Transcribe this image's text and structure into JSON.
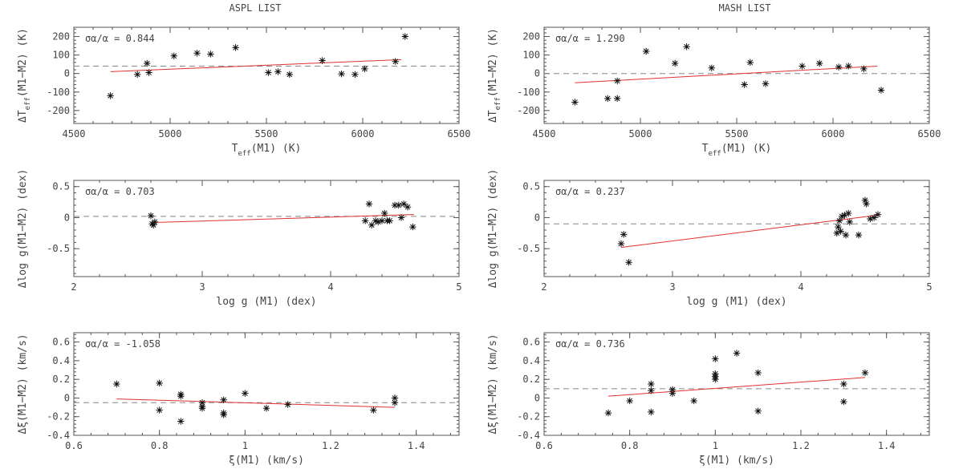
{
  "columns": [
    "ASPL LIST",
    "MASH LIST"
  ],
  "chart_data": [
    {
      "type": "scatter",
      "column": "ASPL LIST",
      "row": 0,
      "xlabel": "T_eff(M1) (K)",
      "ylabel": "ΔT_eff(M1−M2) (K)",
      "annotation": "σα/α = 0.844",
      "xlim": [
        4500,
        6500
      ],
      "ylim": [
        -270,
        250
      ],
      "xticks": [
        4500,
        5000,
        5500,
        6000,
        6500
      ],
      "yticks": [
        -200,
        -100,
        0,
        100,
        200
      ],
      "points": [
        [
          4690,
          -120
        ],
        [
          4830,
          -5
        ],
        [
          4880,
          55
        ],
        [
          4890,
          5
        ],
        [
          5020,
          95
        ],
        [
          5140,
          110
        ],
        [
          5210,
          105
        ],
        [
          5340,
          140
        ],
        [
          5510,
          5
        ],
        [
          5560,
          10
        ],
        [
          5620,
          -5
        ],
        [
          5790,
          70
        ],
        [
          5890,
          -2
        ],
        [
          5960,
          -5
        ],
        [
          6010,
          25
        ],
        [
          6170,
          65
        ],
        [
          6220,
          200
        ]
      ],
      "fit": [
        [
          4690,
          10
        ],
        [
          6200,
          75
        ]
      ],
      "dashed_y": 40
    },
    {
      "type": "scatter",
      "column": "MASH LIST",
      "row": 0,
      "xlabel": "T_eff(M1) (K)",
      "ylabel": "ΔT_eff(M1−M2) (K)",
      "annotation": "σα/α = 1.290",
      "xlim": [
        4500,
        6500
      ],
      "ylim": [
        -270,
        250
      ],
      "xticks": [
        4500,
        5000,
        5500,
        6000,
        6500
      ],
      "yticks": [
        -200,
        -100,
        0,
        100,
        200
      ],
      "points": [
        [
          4660,
          -155
        ],
        [
          4830,
          -135
        ],
        [
          4880,
          -135
        ],
        [
          4880,
          -40
        ],
        [
          5030,
          120
        ],
        [
          5180,
          55
        ],
        [
          5240,
          145
        ],
        [
          5370,
          30
        ],
        [
          5540,
          -60
        ],
        [
          5570,
          60
        ],
        [
          5650,
          -55
        ],
        [
          5840,
          40
        ],
        [
          5930,
          55
        ],
        [
          6030,
          35
        ],
        [
          6080,
          40
        ],
        [
          6160,
          25
        ],
        [
          6250,
          -90
        ]
      ],
      "fit": [
        [
          4660,
          -50
        ],
        [
          6230,
          40
        ]
      ],
      "dashed_y": 0
    },
    {
      "type": "scatter",
      "column": "ASPL LIST",
      "row": 1,
      "xlabel": "log g (M1) (dex)",
      "ylabel": "Δlog g(M1−M2) (dex)",
      "annotation": "σα/α = 0.703",
      "xlim": [
        2,
        5
      ],
      "ylim": [
        -0.95,
        0.6
      ],
      "xticks": [
        2,
        3,
        4,
        5
      ],
      "yticks": [
        -0.5,
        0,
        0.5
      ],
      "points": [
        [
          2.6,
          0.03
        ],
        [
          2.61,
          -0.1
        ],
        [
          2.62,
          -0.12
        ],
        [
          2.63,
          -0.07
        ],
        [
          4.27,
          -0.05
        ],
        [
          4.3,
          0.22
        ],
        [
          4.32,
          -0.12
        ],
        [
          4.35,
          -0.05
        ],
        [
          4.37,
          -0.07
        ],
        [
          4.4,
          -0.05
        ],
        [
          4.42,
          0.07
        ],
        [
          4.44,
          -0.05
        ],
        [
          4.46,
          -0.05
        ],
        [
          4.5,
          0.2
        ],
        [
          4.53,
          0.2
        ],
        [
          4.55,
          0.0
        ],
        [
          4.57,
          0.22
        ],
        [
          4.6,
          0.17
        ],
        [
          4.64,
          -0.15
        ]
      ],
      "fit": [
        [
          2.6,
          -0.08
        ],
        [
          4.65,
          0.05
        ]
      ],
      "dashed_y": 0.02
    },
    {
      "type": "scatter",
      "column": "MASH LIST",
      "row": 1,
      "xlabel": "log g (M1) (dex)",
      "ylabel": "Δlog g(M1−M2) (dex)",
      "annotation": "σα/α = 0.237",
      "xlim": [
        2,
        5
      ],
      "ylim": [
        -0.95,
        0.6
      ],
      "xticks": [
        2,
        3,
        4,
        5
      ],
      "yticks": [
        -0.5,
        0,
        0.5
      ],
      "points": [
        [
          2.6,
          -0.42
        ],
        [
          2.62,
          -0.27
        ],
        [
          2.66,
          -0.72
        ],
        [
          4.28,
          -0.25
        ],
        [
          4.29,
          -0.15
        ],
        [
          4.3,
          -0.05
        ],
        [
          4.31,
          -0.22
        ],
        [
          4.32,
          0.02
        ],
        [
          4.34,
          0.04
        ],
        [
          4.35,
          -0.28
        ],
        [
          4.37,
          0.07
        ],
        [
          4.38,
          -0.07
        ],
        [
          4.45,
          -0.28
        ],
        [
          4.5,
          0.28
        ],
        [
          4.51,
          0.22
        ],
        [
          4.54,
          -0.02
        ],
        [
          4.57,
          0.0
        ],
        [
          4.6,
          0.05
        ]
      ],
      "fit": [
        [
          2.6,
          -0.48
        ],
        [
          4.6,
          0.04
        ]
      ],
      "dashed_y": -0.1
    },
    {
      "type": "scatter",
      "column": "ASPL LIST",
      "row": 2,
      "xlabel": "ξ(M1) (km/s)",
      "ylabel": "Δξ(M1−M2) (km/s)",
      "annotation": "σα/α = -1.058",
      "xlim": [
        0.6,
        1.5
      ],
      "ylim": [
        -0.4,
        0.7
      ],
      "xticks": [
        0.6,
        0.8,
        1,
        1.2,
        1.4
      ],
      "yticks": [
        -0.4,
        -0.2,
        0,
        0.2,
        0.4,
        0.6
      ],
      "points": [
        [
          0.7,
          0.15
        ],
        [
          0.8,
          0.16
        ],
        [
          0.8,
          -0.13
        ],
        [
          0.85,
          0.04
        ],
        [
          0.85,
          0.02
        ],
        [
          0.85,
          -0.25
        ],
        [
          0.9,
          -0.05
        ],
        [
          0.9,
          -0.09
        ],
        [
          0.9,
          -0.11
        ],
        [
          0.95,
          -0.02
        ],
        [
          0.95,
          -0.16
        ],
        [
          0.95,
          -0.18
        ],
        [
          1.0,
          0.05
        ],
        [
          1.05,
          -0.11
        ],
        [
          1.1,
          -0.07
        ],
        [
          1.3,
          -0.13
        ],
        [
          1.35,
          0.0
        ],
        [
          1.35,
          -0.05
        ]
      ],
      "fit": [
        [
          0.7,
          -0.01
        ],
        [
          1.35,
          -0.1
        ]
      ],
      "dashed_y": -0.05
    },
    {
      "type": "scatter",
      "column": "MASH LIST",
      "row": 2,
      "xlabel": "ξ(M1) (km/s)",
      "ylabel": "Δξ(M1−M2) (km/s)",
      "annotation": "σα/α = 0.736",
      "xlim": [
        0.6,
        1.5
      ],
      "ylim": [
        -0.4,
        0.7
      ],
      "xticks": [
        0.6,
        0.8,
        1,
        1.2,
        1.4
      ],
      "yticks": [
        -0.4,
        -0.2,
        0,
        0.2,
        0.4,
        0.6
      ],
      "points": [
        [
          0.75,
          -0.16
        ],
        [
          0.8,
          -0.03
        ],
        [
          0.85,
          0.15
        ],
        [
          0.85,
          0.08
        ],
        [
          0.85,
          -0.15
        ],
        [
          0.9,
          0.09
        ],
        [
          0.9,
          0.05
        ],
        [
          0.95,
          -0.03
        ],
        [
          1.0,
          0.42
        ],
        [
          1.0,
          0.26
        ],
        [
          1.0,
          0.23
        ],
        [
          1.0,
          0.2
        ],
        [
          1.05,
          0.48
        ],
        [
          1.1,
          0.27
        ],
        [
          1.1,
          -0.14
        ],
        [
          1.3,
          0.15
        ],
        [
          1.3,
          -0.04
        ],
        [
          1.35,
          0.27
        ]
      ],
      "fit": [
        [
          0.75,
          0.02
        ],
        [
          1.35,
          0.22
        ]
      ],
      "dashed_y": 0.1
    }
  ]
}
